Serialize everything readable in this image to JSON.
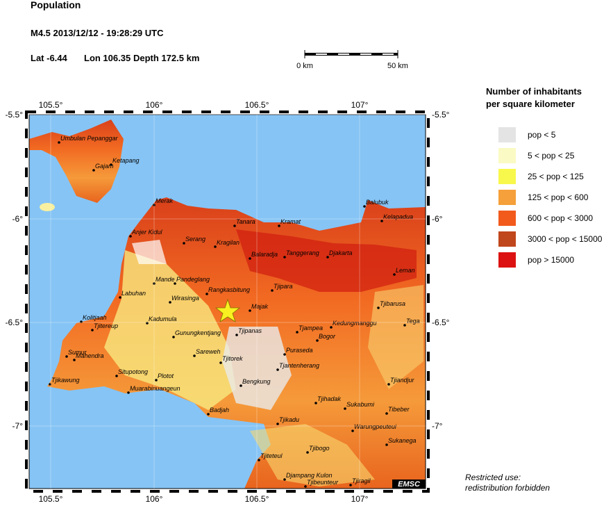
{
  "header": {
    "title": "Population",
    "event": "M4.5  2013/12/12 - 19:28:29 UTC",
    "lat": "Lat -6.44",
    "lon": "Lon 106.35",
    "depth": "Depth 172.5 km"
  },
  "scale": {
    "left": "0 km",
    "right": "50 km"
  },
  "axes": {
    "lon_ticks": [
      "105.5°",
      "106°",
      "106.5°",
      "107°"
    ],
    "lat_ticks": [
      "-5.5°",
      "-6°",
      "-6.5°",
      "-7°"
    ]
  },
  "legend": {
    "title_1": "Number of inhabitants",
    "title_2": "per square kilometer",
    "items": [
      {
        "label": "pop < 5",
        "color": "#e4e4e4"
      },
      {
        "label": "5 < pop < 25",
        "color": "#fafac4"
      },
      {
        "label": "25 < pop < 125",
        "color": "#f8f84c"
      },
      {
        "label": "125 < pop < 600",
        "color": "#f5a03a"
      },
      {
        "label": "600 < pop < 3000",
        "color": "#f25a1c"
      },
      {
        "label": "3000 < pop < 15000",
        "color": "#c0461c"
      },
      {
        "label": "pop > 15000",
        "color": "#dc1212"
      }
    ]
  },
  "places": [
    "Umbulan Pepanggar",
    "Ketapang",
    "Gajam",
    "Merak",
    "Tanara",
    "Kramat",
    "Balubuk",
    "Kelapadua",
    "Anjer Kidul",
    "Serang",
    "Kragilan",
    "Balaradja",
    "Tanggerang",
    "Djakarta",
    "Leman",
    "Mande",
    "Pandeglang",
    "Labuhan",
    "Rangkasbitung",
    "Tjipara",
    "Wirasinga",
    "Majak",
    "Tjibarusa",
    "Kolitjaah",
    "Tjitereup",
    "Kadumula",
    "Tjipanas",
    "Tjampea",
    "Kedungmanggu",
    "Tega",
    "Gunungkentjang",
    "Bogor",
    "Puraseda",
    "Sareweh",
    "Sumur",
    "Mahendra",
    "Tjitorek",
    "Tjantenherang",
    "Situpotong",
    "Plotot",
    "Muarabinuangeun",
    "Bengkung",
    "Tjikawung",
    "Tjiandjur",
    "Tjihadak",
    "Sukabumi",
    "Tibeber",
    "Badjah",
    "Tjikadu",
    "Warungpeuteui",
    "Sukanega",
    "Tjibogo",
    "Tjiteteul",
    "Djampang Kulon",
    "Tjibeunteur",
    "Tjiragil"
  ],
  "badge": "EMSC",
  "note_1": "Restricted use:",
  "note_2": "redistribution forbidden"
}
